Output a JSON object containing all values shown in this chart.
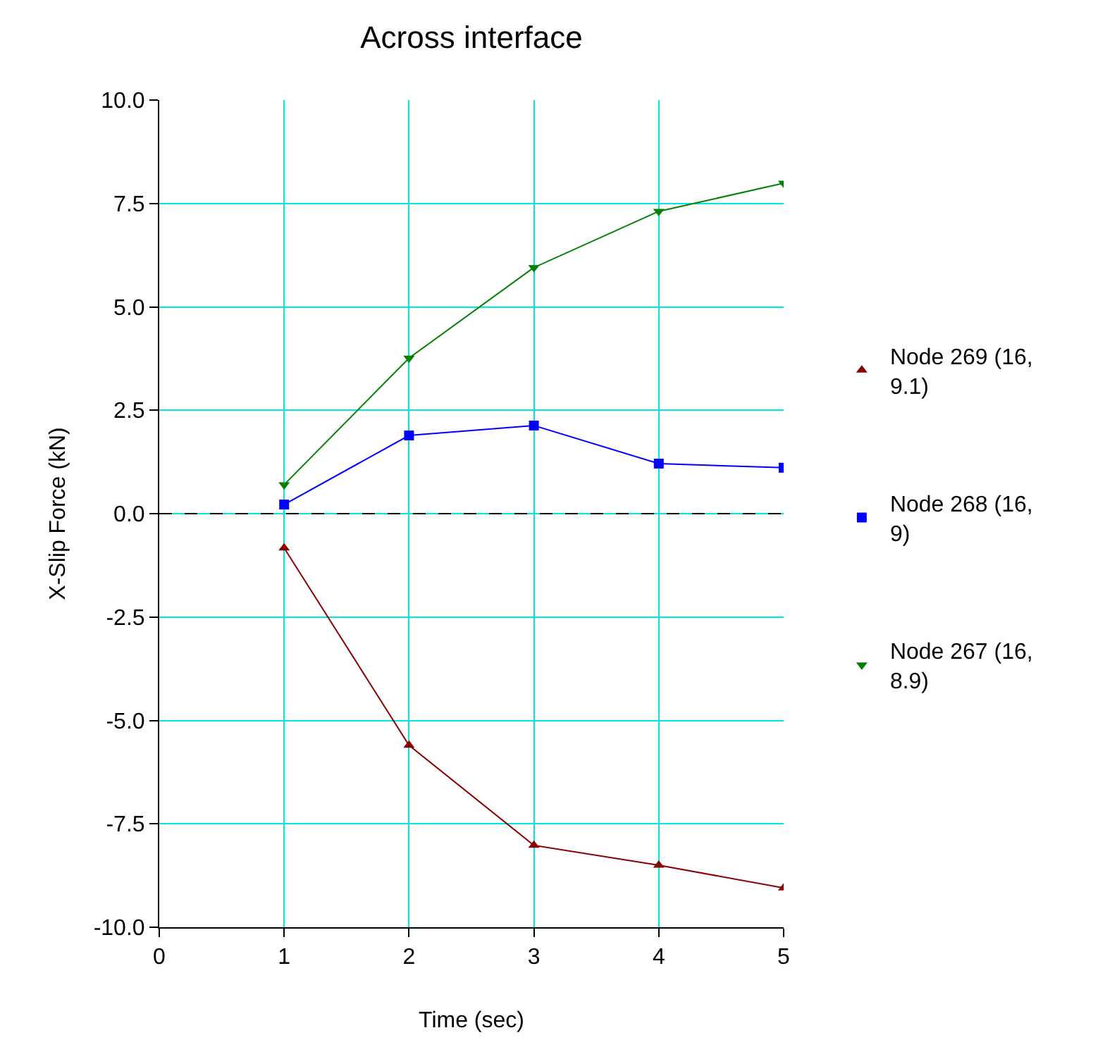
{
  "chart_data": {
    "type": "line",
    "title": "Across interface",
    "xlabel": "Time (sec)",
    "ylabel": "X-Slip Force (kN)",
    "x": [
      1,
      2,
      3,
      4,
      5
    ],
    "series": [
      {
        "name": "Node 269 (16, 9.1)",
        "color": "#8b0000",
        "marker": "triangle",
        "values": [
          -0.83,
          -5.6,
          -8.02,
          -8.5,
          -9.05
        ]
      },
      {
        "name": "Node 268 (16, 9)",
        "color": "#0000ff",
        "marker": "square",
        "values": [
          0.22,
          1.89,
          2.13,
          1.21,
          1.11
        ]
      },
      {
        "name": "Node 267 (16, 8.9)",
        "color": "#008000",
        "marker": "triangle-down",
        "values": [
          0.7,
          3.76,
          5.95,
          7.31,
          7.99
        ]
      }
    ],
    "xlim": [
      0,
      5
    ],
    "xticks": [
      0,
      1,
      2,
      3,
      4,
      5
    ],
    "ylim": [
      -10,
      10
    ],
    "yticks": [
      {
        "value": -10,
        "label": "-10.0"
      },
      {
        "value": -7.5,
        "label": "-7.5"
      },
      {
        "value": -5,
        "label": "-5.0"
      },
      {
        "value": -2.5,
        "label": "-2.5"
      },
      {
        "value": 0,
        "label": "0.0"
      },
      {
        "value": 2.5,
        "label": "2.5"
      },
      {
        "value": 5,
        "label": "5.0"
      },
      {
        "value": 7.5,
        "label": "7.5"
      },
      {
        "value": 10,
        "label": "10.0"
      }
    ],
    "ref_lines": [
      {
        "axis": "y",
        "value": 0,
        "color": "#000000",
        "line_style": "dashed"
      }
    ],
    "grid": true,
    "legend": "right",
    "line_style": "solid"
  }
}
